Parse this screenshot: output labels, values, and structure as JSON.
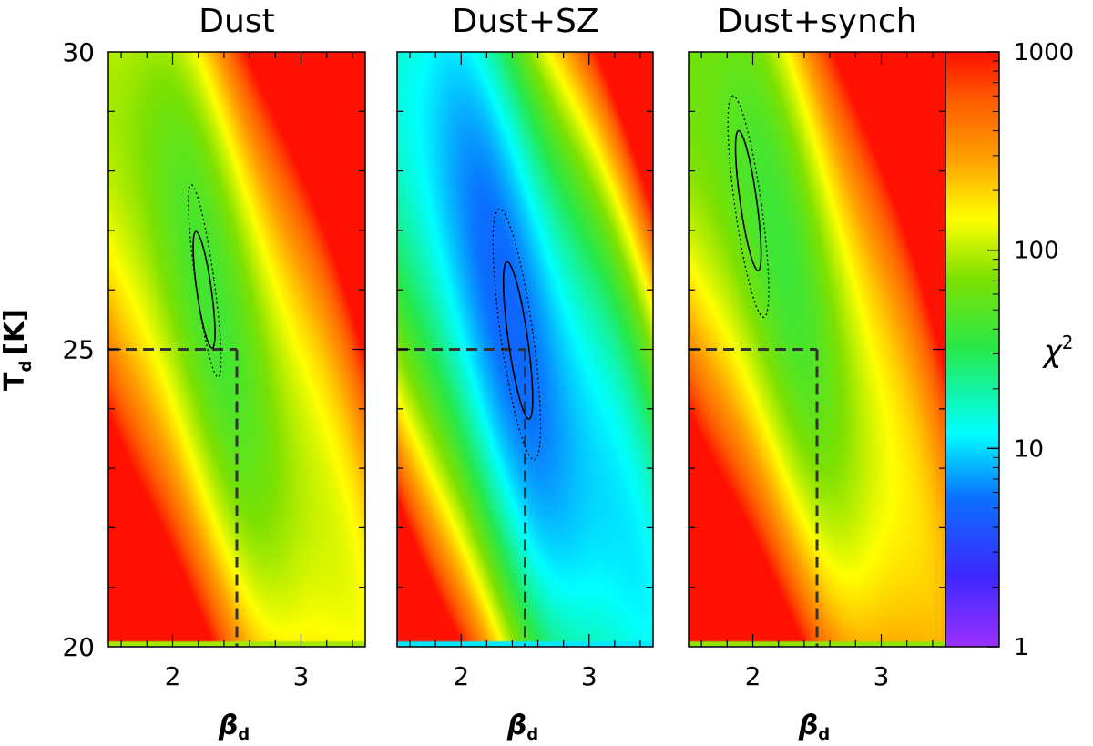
{
  "chart_data": {
    "type": "heatmap",
    "shared_axes": {
      "x_label": "β",
      "x_label_sub": "d",
      "y_label": "T",
      "y_label_sub": "d",
      "y_label_unit": "[K]",
      "xlim": [
        1.5,
        3.5
      ],
      "ylim": [
        20,
        30
      ],
      "x_ticks": [
        2,
        3
      ],
      "y_ticks": [
        20,
        25,
        30
      ]
    },
    "colorbar": {
      "label": "χ",
      "label_sup": "2",
      "scale": "log",
      "range": [
        1,
        1000
      ],
      "ticks": [
        1,
        10,
        100,
        1000
      ],
      "colormap": "rainbow (purple → blue → cyan → green → yellow → orange → red)"
    },
    "true_value": {
      "beta_d": 2.5,
      "T_d": 25
    },
    "panels": [
      {
        "title": "Dust",
        "min_chi2": 50,
        "best_fit": {
          "beta_d": 2.25,
          "T_d": 26.0
        },
        "contours": [
          {
            "style": "solid",
            "level": "1σ",
            "beta_d_range": [
              2.16,
              2.33
            ],
            "T_d_range": [
              25.0,
              27.0
            ]
          },
          {
            "style": "dotted",
            "level": "2σ",
            "beta_d_range": [
              2.12,
              2.38
            ],
            "T_d_range": [
              24.5,
              27.8
            ]
          }
        ]
      },
      {
        "title": "Dust+SZ",
        "min_chi2": 6,
        "best_fit": {
          "beta_d": 2.45,
          "T_d": 25.3
        },
        "contours": [
          {
            "style": "solid",
            "level": "1σ",
            "beta_d_range": [
              2.31,
              2.58
            ],
            "T_d_range": [
              23.8,
              26.5
            ]
          },
          {
            "style": "dotted",
            "level": "2σ",
            "beta_d_range": [
              2.21,
              2.66
            ],
            "T_d_range": [
              23.1,
              27.4
            ]
          }
        ]
      },
      {
        "title": "Dust+synch",
        "min_chi2": 45,
        "best_fit": {
          "beta_d": 1.97,
          "T_d": 27.7
        },
        "contours": [
          {
            "style": "solid",
            "level": "1σ",
            "beta_d_range": [
              1.85,
              2.08
            ],
            "T_d_range": [
              26.3,
              28.7
            ]
          },
          {
            "style": "dotted",
            "level": "2σ",
            "beta_d_range": [
              1.78,
              2.15
            ],
            "T_d_range": [
              25.5,
              29.3
            ]
          }
        ]
      }
    ]
  }
}
